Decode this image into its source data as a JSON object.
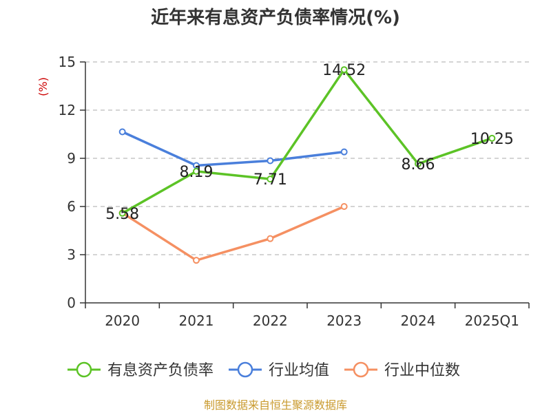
{
  "chart_data": {
    "type": "line",
    "title": "近年来有息资产负债率情况(%)",
    "ylabel": "(%)",
    "xlabel": "",
    "categories": [
      "2020",
      "2021",
      "2022",
      "2023",
      "2024",
      "2025Q1"
    ],
    "ylim": [
      0,
      15
    ],
    "yticks": [
      "0",
      "3",
      "6",
      "9",
      "12",
      "15"
    ],
    "grid": "horizontal dashed",
    "legend_position": "bottom",
    "series": [
      {
        "name": "有息资产负债率",
        "color": "#5cc326",
        "values": [
          5.58,
          8.19,
          7.71,
          14.52,
          8.66,
          10.25
        ],
        "labels": [
          "5.58",
          "8.19",
          "7.71",
          "14.52",
          "8.66",
          "10.25"
        ]
      },
      {
        "name": "行业均值",
        "color": "#4a7fdb",
        "values": [
          10.65,
          8.55,
          8.85,
          9.4,
          null,
          null
        ]
      },
      {
        "name": "行业中位数",
        "color": "#f59062",
        "values": [
          5.6,
          2.65,
          4.0,
          6.0,
          null,
          null
        ]
      }
    ],
    "ylabel_color": "#cc0000",
    "source": "制图数据来自恒生聚源数据库",
    "source_color": "#c99a2e"
  }
}
